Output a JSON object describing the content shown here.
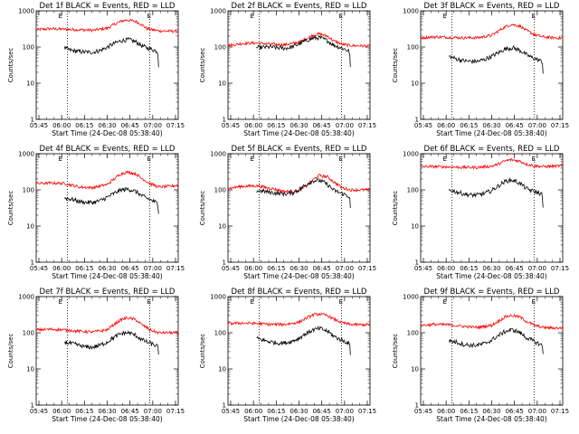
{
  "chart_data": [
    {
      "type": "line",
      "title": "Det 1f BLACK = Events, RED = LLD",
      "xlabel": "Start Time (24-Dec-08 05:38:40)",
      "ylabel": "Counts/sec",
      "ylog": true,
      "ylim": [
        1,
        1000
      ],
      "xlim": [
        0,
        100
      ],
      "xticks": [
        "05:45",
        "06:00",
        "06:15",
        "06:30",
        "06:45",
        "07:00",
        "07:15"
      ],
      "yticks": [
        "1",
        "10",
        "100",
        "1000"
      ],
      "marker": "E",
      "series": [
        {
          "name": "RED",
          "color": "#ff0000",
          "x": [
            0,
            10,
            20,
            30,
            40,
            50,
            55,
            60,
            64,
            70,
            74,
            78,
            86,
            94,
            100
          ],
          "values": [
            300,
            320,
            310,
            300,
            290,
            330,
            420,
            520,
            560,
            510,
            420,
            320,
            280,
            275,
            270
          ]
        },
        {
          "name": "BLACK",
          "color": "#000000",
          "x": [
            20,
            25,
            30,
            35,
            40,
            45,
            50,
            55,
            60,
            65,
            70,
            74,
            78,
            82,
            85.5,
            86,
            86.2
          ],
          "values": [
            92,
            80,
            75,
            72,
            72,
            80,
            98,
            125,
            150,
            160,
            140,
            110,
            95,
            85,
            75,
            55,
            30
          ]
        }
      ]
    },
    {
      "type": "line",
      "title": "Det 2f BLACK = Events, RED = LLD",
      "xlabel": "Start Time (24-Dec-08 05:38:40)",
      "ylabel": "Counts/sec",
      "ylog": true,
      "ylim": [
        1,
        1000
      ],
      "xlim": [
        0,
        100
      ],
      "xticks": [
        "05:45",
        "06:00",
        "06:15",
        "06:30",
        "06:45",
        "07:00",
        "07:15"
      ],
      "yticks": [
        "1",
        "10",
        "100",
        "1000"
      ],
      "marker": "E",
      "series": [
        {
          "name": "RED",
          "color": "#ff0000",
          "x": [
            0,
            10,
            20,
            30,
            40,
            50,
            55,
            60,
            64,
            70,
            74,
            80,
            86,
            94,
            100
          ],
          "values": [
            110,
            125,
            130,
            120,
            115,
            135,
            170,
            210,
            230,
            200,
            150,
            120,
            110,
            108,
            105
          ]
        },
        {
          "name": "BLACK",
          "color": "#000000",
          "x": [
            20,
            25,
            30,
            35,
            40,
            45,
            50,
            55,
            60,
            65,
            70,
            74,
            78,
            82,
            85.5,
            86,
            86.2
          ],
          "values": [
            95,
            98,
            100,
            95,
            92,
            100,
            120,
            150,
            175,
            180,
            150,
            115,
            100,
            88,
            75,
            45,
            25
          ]
        }
      ]
    },
    {
      "type": "line",
      "title": "Det 3f BLACK = Events, RED = LLD",
      "xlabel": "Start Time (24-Dec-08 05:38:40)",
      "ylabel": "Counts/sec",
      "ylog": true,
      "ylim": [
        1,
        1000
      ],
      "xlim": [
        0,
        100
      ],
      "xticks": [
        "05:45",
        "06:00",
        "06:15",
        "06:30",
        "06:45",
        "07:00",
        "07:15"
      ],
      "yticks": [
        "1",
        "10",
        "100",
        "1000"
      ],
      "marker": "E",
      "series": [
        {
          "name": "RED",
          "color": "#ff0000",
          "x": [
            0,
            10,
            20,
            30,
            40,
            50,
            55,
            60,
            64,
            70,
            74,
            80,
            86,
            94,
            100
          ],
          "values": [
            180,
            190,
            185,
            180,
            180,
            210,
            280,
            370,
            420,
            380,
            290,
            220,
            190,
            180,
            175
          ]
        },
        {
          "name": "BLACK",
          "color": "#000000",
          "x": [
            20,
            25,
            30,
            35,
            40,
            45,
            50,
            55,
            60,
            65,
            70,
            74,
            78,
            82,
            85.5,
            86,
            86.2
          ],
          "values": [
            55,
            47,
            42,
            40,
            40,
            45,
            55,
            70,
            90,
            95,
            80,
            62,
            52,
            45,
            40,
            30,
            20
          ]
        }
      ]
    },
    {
      "type": "line",
      "title": "Det 4f BLACK = Events, RED = LLD",
      "xlabel": "Start Time (24-Dec-08 05:38:40)",
      "ylabel": "Counts/sec",
      "ylog": true,
      "ylim": [
        1,
        1000
      ],
      "xlim": [
        0,
        100
      ],
      "xticks": [
        "05:45",
        "06:00",
        "06:15",
        "06:30",
        "06:45",
        "07:00",
        "07:15"
      ],
      "yticks": [
        "1",
        "10",
        "100",
        "1000"
      ],
      "marker": "E",
      "series": [
        {
          "name": "RED",
          "color": "#ff0000",
          "x": [
            0,
            10,
            20,
            30,
            40,
            50,
            55,
            60,
            64,
            70,
            74,
            80,
            86,
            94,
            100
          ],
          "values": [
            150,
            155,
            150,
            120,
            115,
            140,
            200,
            280,
            310,
            280,
            210,
            150,
            120,
            125,
            135
          ]
        },
        {
          "name": "BLACK",
          "color": "#000000",
          "x": [
            20,
            25,
            30,
            35,
            40,
            45,
            50,
            55,
            60,
            65,
            70,
            74,
            78,
            82,
            85.5,
            86,
            86.2
          ],
          "values": [
            60,
            55,
            48,
            45,
            45,
            50,
            62,
            80,
            100,
            105,
            90,
            70,
            58,
            50,
            42,
            32,
            25
          ]
        }
      ]
    },
    {
      "type": "line",
      "title": "Det 5f BLACK = Events, RED = LLD",
      "xlabel": "Start Time (24-Dec-08 05:38:40)",
      "ylabel": "Counts/sec",
      "ylog": true,
      "ylim": [
        1,
        1000
      ],
      "xlim": [
        0,
        100
      ],
      "xticks": [
        "05:45",
        "06:00",
        "06:15",
        "06:30",
        "06:45",
        "07:00",
        "07:15"
      ],
      "yticks": [
        "1",
        "10",
        "100",
        "1000"
      ],
      "marker": "E",
      "series": [
        {
          "name": "RED",
          "color": "#ff0000",
          "x": [
            0,
            10,
            20,
            30,
            40,
            50,
            55,
            60,
            64,
            70,
            74,
            80,
            86,
            94,
            100
          ],
          "values": [
            110,
            125,
            130,
            110,
            90,
            95,
            125,
            190,
            250,
            230,
            170,
            115,
            100,
            100,
            100
          ]
        },
        {
          "name": "BLACK",
          "color": "#000000",
          "x": [
            20,
            25,
            30,
            35,
            40,
            45,
            50,
            55,
            60,
            65,
            70,
            74,
            78,
            82,
            85.5,
            86,
            86.2
          ],
          "values": [
            95,
            92,
            85,
            80,
            78,
            82,
            100,
            140,
            180,
            180,
            140,
            100,
            85,
            75,
            65,
            45,
            30
          ]
        }
      ]
    },
    {
      "type": "line",
      "title": "Det 6f BLACK = Events, RED = LLD",
      "xlabel": "Start Time (24-Dec-08 05:38:40)",
      "ylabel": "Counts/sec",
      "ylog": true,
      "ylim": [
        1,
        1000
      ],
      "xlim": [
        0,
        100
      ],
      "xticks": [
        "05:45",
        "06:00",
        "06:15",
        "06:30",
        "06:45",
        "07:00",
        "07:15"
      ],
      "yticks": [
        "1",
        "10",
        "100",
        "1000"
      ],
      "marker": "E",
      "series": [
        {
          "name": "RED",
          "color": "#ff0000",
          "x": [
            0,
            10,
            20,
            30,
            40,
            50,
            55,
            60,
            64,
            70,
            74,
            80,
            86,
            94,
            100
          ],
          "values": [
            440,
            440,
            430,
            420,
            420,
            450,
            520,
            640,
            680,
            620,
            520,
            460,
            440,
            450,
            460
          ]
        },
        {
          "name": "BLACK",
          "color": "#000000",
          "x": [
            20,
            25,
            30,
            35,
            40,
            45,
            50,
            55,
            60,
            65,
            70,
            74,
            78,
            82,
            85.5,
            86,
            86.2
          ],
          "values": [
            100,
            88,
            78,
            72,
            72,
            80,
            95,
            130,
            175,
            185,
            150,
            110,
            95,
            85,
            75,
            50,
            30
          ]
        }
      ]
    },
    {
      "type": "line",
      "title": "Det 7f BLACK = Events, RED = LLD",
      "xlabel": "Start Time (24-Dec-08 05:38:40)",
      "ylabel": "Counts/sec",
      "ylog": true,
      "ylim": [
        1,
        1000
      ],
      "xlim": [
        0,
        100
      ],
      "xticks": [
        "05:45",
        "06:00",
        "06:15",
        "06:30",
        "06:45",
        "07:00",
        "07:15"
      ],
      "yticks": [
        "1",
        "10",
        "100",
        "1000"
      ],
      "marker": "E",
      "series": [
        {
          "name": "RED",
          "color": "#ff0000",
          "x": [
            0,
            10,
            20,
            30,
            40,
            50,
            55,
            60,
            64,
            70,
            74,
            80,
            86,
            94,
            100
          ],
          "values": [
            120,
            125,
            120,
            110,
            105,
            120,
            170,
            230,
            260,
            230,
            170,
            120,
            100,
            100,
            100
          ]
        },
        {
          "name": "BLACK",
          "color": "#000000",
          "x": [
            20,
            25,
            30,
            35,
            40,
            45,
            50,
            55,
            60,
            65,
            70,
            74,
            78,
            82,
            85.5,
            86,
            86.2
          ],
          "values": [
            55,
            50,
            45,
            40,
            40,
            45,
            55,
            75,
            95,
            100,
            85,
            65,
            55,
            48,
            42,
            32,
            25
          ]
        }
      ]
    },
    {
      "type": "line",
      "title": "Det 8f BLACK = Events, RED = LLD",
      "xlabel": "Start Time (24-Dec-08 05:38:40)",
      "ylabel": "Counts/sec",
      "ylog": true,
      "ylim": [
        1,
        1000
      ],
      "xlim": [
        0,
        100
      ],
      "xticks": [
        "05:45",
        "06:00",
        "06:15",
        "06:30",
        "06:45",
        "07:00",
        "07:15"
      ],
      "yticks": [
        "1",
        "10",
        "100",
        "1000"
      ],
      "marker": "E",
      "series": [
        {
          "name": "RED",
          "color": "#ff0000",
          "x": [
            0,
            10,
            20,
            30,
            40,
            50,
            55,
            60,
            64,
            70,
            74,
            80,
            86,
            94,
            100
          ],
          "values": [
            180,
            185,
            180,
            170,
            170,
            195,
            250,
            310,
            330,
            300,
            240,
            190,
            170,
            165,
            170
          ]
        },
        {
          "name": "BLACK",
          "color": "#000000",
          "x": [
            20,
            25,
            30,
            35,
            40,
            45,
            50,
            55,
            60,
            65,
            70,
            74,
            78,
            82,
            85.5,
            86,
            86.2
          ],
          "values": [
            70,
            62,
            56,
            52,
            52,
            58,
            70,
            95,
            120,
            130,
            110,
            82,
            68,
            58,
            50,
            38,
            25
          ]
        }
      ]
    },
    {
      "type": "line",
      "title": "Det 9f BLACK = Events, RED = LLD",
      "xlabel": "Start Time (24-Dec-08 05:38:40)",
      "ylabel": "Counts/sec",
      "ylog": true,
      "ylim": [
        1,
        1000
      ],
      "xlim": [
        0,
        100
      ],
      "xticks": [
        "05:45",
        "06:00",
        "06:15",
        "06:30",
        "06:45",
        "07:00",
        "07:15"
      ],
      "yticks": [
        "1",
        "10",
        "100",
        "1000"
      ],
      "marker": "E",
      "series": [
        {
          "name": "RED",
          "color": "#ff0000",
          "x": [
            0,
            10,
            20,
            30,
            40,
            50,
            55,
            60,
            64,
            70,
            74,
            80,
            86,
            94,
            100
          ],
          "values": [
            160,
            170,
            165,
            150,
            140,
            160,
            210,
            280,
            300,
            270,
            210,
            160,
            140,
            135,
            135
          ]
        },
        {
          "name": "BLACK",
          "color": "#000000",
          "x": [
            20,
            25,
            30,
            35,
            40,
            45,
            50,
            55,
            60,
            65,
            70,
            74,
            78,
            82,
            85.5,
            86,
            86.2
          ],
          "values": [
            60,
            55,
            48,
            45,
            45,
            50,
            62,
            85,
            110,
            120,
            100,
            75,
            62,
            52,
            45,
            35,
            25
          ]
        }
      ]
    }
  ]
}
